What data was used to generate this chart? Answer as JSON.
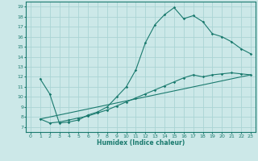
{
  "xlabel": "Humidex (Indice chaleur)",
  "bg_color": "#cce8e8",
  "line_color": "#1a7a6e",
  "grid_color": "#aad4d4",
  "xlim": [
    -0.5,
    23.5
  ],
  "ylim": [
    6.5,
    19.5
  ],
  "xticks": [
    0,
    1,
    2,
    3,
    4,
    5,
    6,
    7,
    8,
    9,
    10,
    11,
    12,
    13,
    14,
    15,
    16,
    17,
    18,
    19,
    20,
    21,
    22,
    23
  ],
  "yticks": [
    7,
    8,
    9,
    10,
    11,
    12,
    13,
    14,
    15,
    16,
    17,
    18,
    19
  ],
  "line1_x": [
    1,
    2,
    3,
    4,
    5,
    6,
    7,
    8,
    9,
    10,
    11,
    12,
    13,
    14,
    15,
    16,
    17,
    18,
    19,
    20,
    21,
    22,
    23
  ],
  "line1_y": [
    11.8,
    10.3,
    7.4,
    7.5,
    7.7,
    8.2,
    8.5,
    9.0,
    10.0,
    11.0,
    12.7,
    15.4,
    17.2,
    18.2,
    18.9,
    17.8,
    18.1,
    17.5,
    16.3,
    16.0,
    15.5,
    14.8,
    14.3
  ],
  "line2_x": [
    1,
    2,
    3,
    4,
    5,
    6,
    7,
    8,
    9,
    10,
    11,
    12,
    13,
    14,
    15,
    16,
    17,
    18,
    19,
    20,
    21,
    22,
    23
  ],
  "line2_y": [
    7.8,
    7.4,
    7.5,
    7.7,
    7.9,
    8.1,
    8.4,
    8.7,
    9.1,
    9.5,
    9.9,
    10.3,
    10.7,
    11.1,
    11.5,
    11.9,
    12.2,
    12.0,
    12.2,
    12.3,
    12.4,
    12.3,
    12.2
  ],
  "line3_x": [
    1,
    23
  ],
  "line3_y": [
    7.8,
    12.2
  ]
}
